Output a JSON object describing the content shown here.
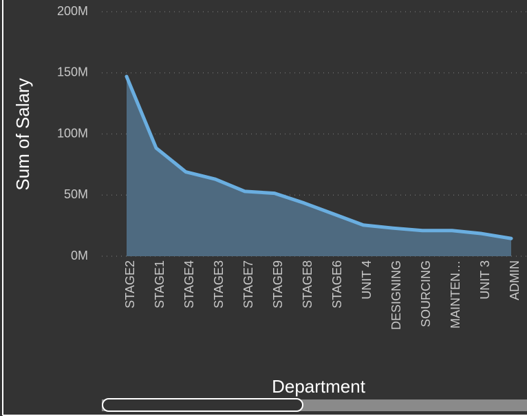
{
  "chart_data": {
    "type": "area",
    "x_label": "Department",
    "y_label": "Sum of Salary",
    "categories": [
      "STAGE2",
      "STAGE1",
      "STAGE4",
      "STAGE3",
      "STAGE7",
      "STAGE9",
      "STAGE8",
      "STAGE6",
      "UNIT 4",
      "DESIGNING",
      "SOURCING",
      "MAINTEN…",
      "UNIT 3",
      "ADMIN"
    ],
    "series": [
      {
        "name": "Sum of Salary",
        "color": "#6aaee0",
        "values": [
          147000000,
          88500000,
          69000000,
          63000000,
          53000000,
          51500000,
          43500000,
          34500000,
          25500000,
          23000000,
          21000000,
          21000000,
          18500000,
          14500000
        ]
      }
    ],
    "ylim": [
      0,
      200000000
    ],
    "yticks": [
      {
        "value": 0,
        "label": "0M"
      },
      {
        "value": 50000000,
        "label": "50M"
      },
      {
        "value": 100000000,
        "label": "100M"
      },
      {
        "value": 150000000,
        "label": "150M"
      },
      {
        "value": 200000000,
        "label": "200M"
      }
    ],
    "grid": true
  }
}
